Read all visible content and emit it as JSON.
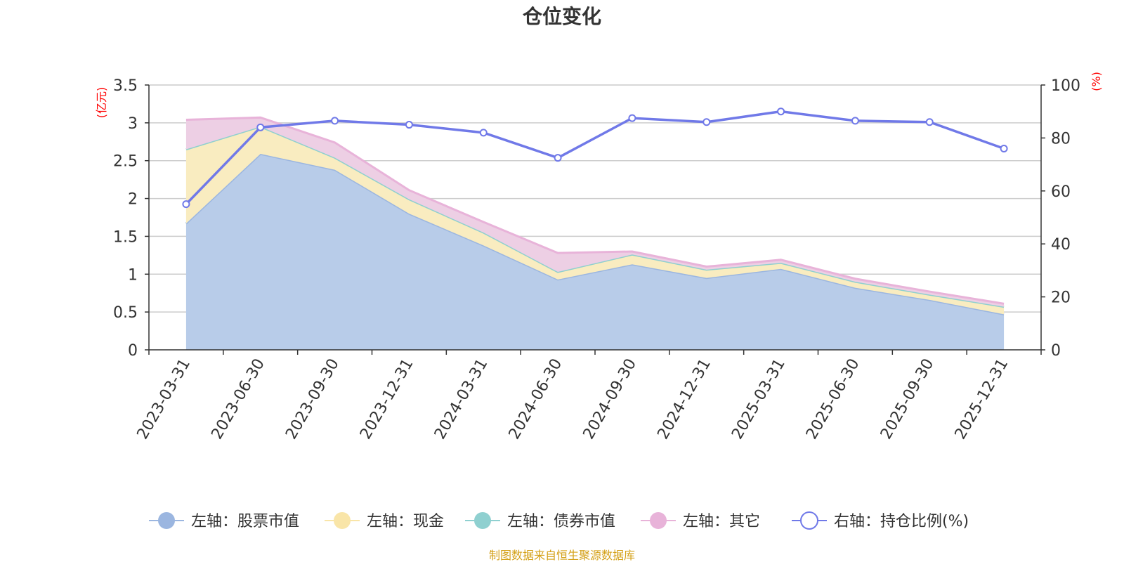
{
  "chart_data": {
    "type": "area",
    "title": "仓位变化",
    "categories": [
      "2023-03-31",
      "2023-06-30",
      "2023-09-30",
      "2023-12-31",
      "2024-03-31",
      "2024-06-30",
      "2024-09-30",
      "2024-12-31",
      "2025-03-31",
      "2025-06-30",
      "2025-09-30",
      "2025-12-31"
    ],
    "left_axis": {
      "unit": "(亿元)",
      "ylim": [
        0,
        3.5
      ],
      "ticks": [
        0,
        0.5,
        1,
        1.5,
        2,
        2.5,
        3,
        3.5
      ],
      "tick_labels": [
        "0",
        "0.5",
        "1",
        "1.5",
        "2",
        "2.5",
        "3",
        "3.5"
      ]
    },
    "right_axis": {
      "unit": "(%)",
      "ylim": [
        0,
        100
      ],
      "ticks": [
        0,
        20,
        40,
        60,
        80,
        100
      ],
      "tick_labels": [
        "0",
        "20",
        "40",
        "60",
        "80",
        "100"
      ]
    },
    "series": [
      {
        "name": "左轴：股票市值",
        "axis": "left",
        "type": "stacked-area",
        "color": "#9bb6e0",
        "fill": "#b8cce9",
        "values": [
          1.67,
          2.59,
          2.38,
          1.8,
          1.38,
          0.93,
          1.13,
          0.95,
          1.07,
          0.82,
          0.66,
          0.47
        ]
      },
      {
        "name": "左轴：现金",
        "axis": "left",
        "type": "stacked-area",
        "color": "#f9e5a8",
        "fill": "#f9ecc0",
        "values": [
          0.98,
          0.36,
          0.16,
          0.19,
          0.17,
          0.1,
          0.13,
          0.11,
          0.08,
          0.08,
          0.07,
          0.1
        ]
      },
      {
        "name": "左轴：债券市值",
        "axis": "left",
        "type": "stacked-area",
        "color": "#8fd0d0",
        "fill": "#a8dada",
        "values": [
          0,
          0,
          0,
          0,
          0,
          0,
          0,
          0,
          0,
          0,
          0,
          0
        ]
      },
      {
        "name": "左轴：其它",
        "axis": "left",
        "type": "stacked-area",
        "color": "#e8b3d9",
        "fill": "#edcfe4",
        "values": [
          0.39,
          0.12,
          0.2,
          0.12,
          0.14,
          0.25,
          0.04,
          0.04,
          0.04,
          0.04,
          0.04,
          0.04
        ]
      },
      {
        "name": "右轴：持仓比例(%)",
        "axis": "right",
        "type": "line",
        "color": "#7079e8",
        "values": [
          55.0,
          84.0,
          86.5,
          85.0,
          82.0,
          72.5,
          87.5,
          86.0,
          90.0,
          86.5,
          86.0,
          76.0
        ]
      }
    ],
    "legend_position": "bottom-center",
    "grid": true,
    "source": "制图数据来自恒生聚源数据库"
  }
}
